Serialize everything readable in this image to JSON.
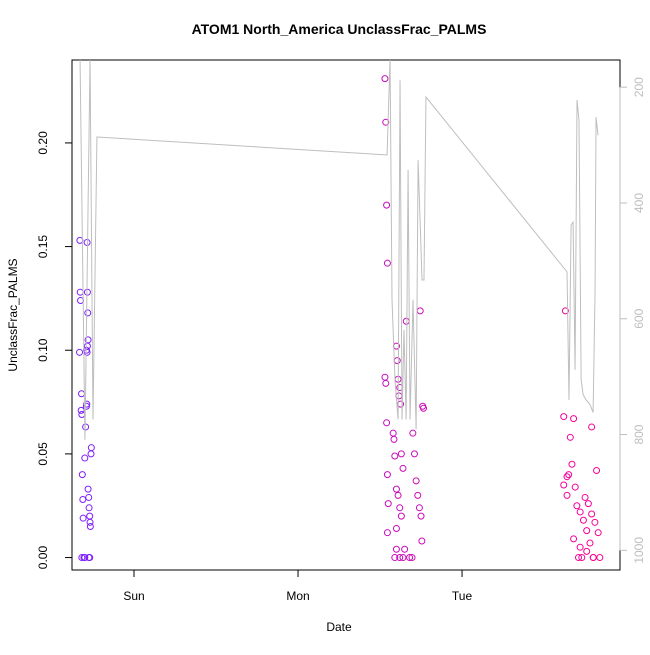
{
  "chart_data": {
    "type": "scatter",
    "title": "ATOM1 North_America UnclassFrac_PALMS",
    "x_label": "Date",
    "y_label": "UnclassFrac_PALMS",
    "xlim": [
      -0.378,
      2.963
    ],
    "xticks": [
      {
        "value": 0,
        "label": "Sun"
      },
      {
        "value": 1,
        "label": "Mon"
      },
      {
        "value": 2,
        "label": "Tue"
      }
    ],
    "ylim": [
      -0.006,
      0.24
    ],
    "yticks": [
      {
        "value": 0,
        "label": "0.00"
      },
      0.05,
      {
        "value": 0.1,
        "label": "0.10"
      },
      0.15,
      {
        "value": 0.2,
        "label": "0.20"
      }
    ],
    "y2lim": [
      153,
      1034
    ],
    "y2_reversed": true,
    "y2ticks": [
      200,
      400,
      600,
      800,
      1000
    ],
    "color_gradient": [
      "#7a1fff",
      "#ff0090"
    ],
    "series": [
      {
        "type": "scatter",
        "x": [
          -0.33,
          -0.328,
          -0.326,
          -0.332,
          -0.322,
          -0.318,
          -0.32,
          -0.315,
          -0.312,
          -0.31,
          -0.318,
          -0.305,
          -0.3,
          -0.3,
          -0.295,
          -0.29,
          -0.288,
          -0.29,
          -0.286,
          -0.284,
          -0.28,
          -0.282,
          -0.284,
          -0.286,
          -0.28,
          -0.276,
          -0.274,
          -0.27,
          -0.268,
          -0.266,
          -0.262,
          -0.26,
          -0.275,
          -0.27,
          1.53,
          1.535,
          1.54,
          1.545,
          1.53,
          1.535,
          1.54,
          1.545,
          1.55,
          1.545,
          1.59,
          1.6,
          1.6,
          1.605,
          1.61,
          1.62,
          1.615,
          1.625,
          1.58,
          1.585,
          1.59,
          1.63,
          1.64,
          1.6,
          1.61,
          1.62,
          1.63,
          1.6,
          1.62,
          1.64,
          1.66,
          1.745,
          1.76,
          1.765,
          1.7,
          1.71,
          1.72,
          1.73,
          1.74,
          1.75,
          1.755,
          1.65,
          1.68,
          1.695,
          2.63,
          2.62,
          2.68,
          2.79,
          2.66,
          2.67,
          2.65,
          2.62,
          2.64,
          2.7,
          2.72,
          2.74,
          2.76,
          2.78,
          2.71,
          2.73,
          2.8,
          2.82,
          2.64,
          2.69,
          2.75,
          2.77,
          2.79,
          2.81,
          2.83,
          2.68,
          2.72,
          2.76,
          2.8,
          2.84
        ],
        "values": [
          0.153,
          0.128,
          0.124,
          0.099,
          0.071,
          0.069,
          0.079,
          0.04,
          0.028,
          0.019,
          0,
          0,
          0,
          0.048,
          0.063,
          0.073,
          0.074,
          0.1,
          0.099,
          0.102,
          0.105,
          0.118,
          0.128,
          0.152,
          0.033,
          0.029,
          0.024,
          0.02,
          0.017,
          0.015,
          0.05,
          0.053,
          0,
          0,
          0.231,
          0.21,
          0.17,
          0.142,
          0.087,
          0.084,
          0.065,
          0.04,
          0.026,
          0.012,
          0,
          0.004,
          0.102,
          0.095,
          0.086,
          0.082,
          0.078,
          0.074,
          0.06,
          0.057,
          0.049,
          0.05,
          0.043,
          0.033,
          0.03,
          0.024,
          0.02,
          0.014,
          0,
          0,
          0.114,
          0.119,
          0.073,
          0.072,
          0.06,
          0.05,
          0.037,
          0.03,
          0.024,
          0.02,
          0.008,
          0.004,
          0,
          0,
          0.119,
          0.068,
          0.067,
          0.063,
          0.058,
          0.045,
          0.04,
          0.035,
          0.03,
          0.025,
          0.022,
          0.018,
          0.013,
          0.007,
          0,
          0,
          0,
          0.042,
          0.039,
          0.034,
          0.029,
          0.026,
          0.021,
          0.017,
          0.012,
          0.009,
          0.005,
          0.003,
          0,
          0
        ]
      },
      {
        "type": "line",
        "axis": "y2",
        "color": "#bebebe",
        "x": [
          -0.329,
          -0.299,
          -0.268,
          -0.25,
          -0.226,
          1.543,
          1.561,
          1.573,
          1.591,
          1.61,
          1.622,
          1.634,
          1.646,
          1.659,
          1.671,
          1.683,
          1.701,
          1.72,
          1.732,
          1.744,
          1.756,
          1.768,
          1.78,
          2.64,
          2.652,
          2.665,
          2.677,
          2.689,
          2.701,
          2.713,
          2.726,
          2.738,
          2.756,
          2.78,
          2.799,
          2.811,
          2.817,
          2.829
        ],
        "values": [
          150,
          809,
          150,
          774,
          286,
          317,
          150,
          567,
          705,
          774,
          188,
          774,
          619,
          774,
          343,
          774,
          567,
          791,
          326,
          429,
          533,
          533,
          217,
          519,
          740,
          438,
          433,
          688,
          222,
          257,
          705,
          731,
          740,
          748,
          762,
          550,
          252,
          283
        ]
      }
    ]
  }
}
